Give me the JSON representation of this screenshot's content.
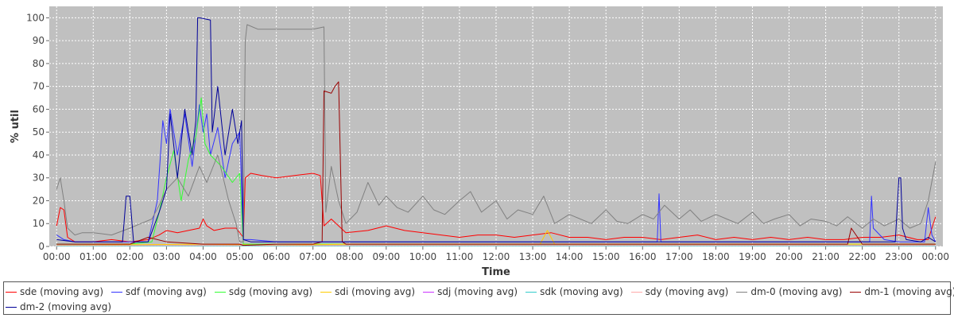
{
  "chart_data": {
    "type": "line",
    "title": "",
    "xlabel": "Time",
    "ylabel": "% util",
    "ylim": [
      0,
      105
    ],
    "yticks": [
      0,
      10,
      20,
      30,
      40,
      50,
      60,
      70,
      80,
      90,
      100
    ],
    "x_tick_labels": [
      "00:00",
      "01:00",
      "02:00",
      "03:00",
      "04:00",
      "05:00",
      "06:00",
      "07:00",
      "08:00",
      "09:00",
      "10:00",
      "11:00",
      "12:00",
      "13:00",
      "14:00",
      "15:00",
      "16:00",
      "17:00",
      "18:00",
      "19:00",
      "20:00",
      "21:00",
      "22:00",
      "23:00",
      "00:00"
    ],
    "x_range_hours": [
      -0.2,
      24.2
    ],
    "grid": true,
    "legend_position": "bottom",
    "series": [
      {
        "name": "sde (moving avg)",
        "color": "#ff0000",
        "x": [
          0.0,
          0.1,
          0.2,
          0.3,
          0.5,
          1.0,
          1.5,
          2.0,
          2.5,
          2.8,
          3.0,
          3.3,
          3.6,
          3.9,
          4.0,
          4.1,
          4.3,
          4.6,
          4.9,
          5.1,
          5.15,
          5.3,
          5.6,
          6.0,
          6.5,
          7.0,
          7.2,
          7.3,
          7.5,
          7.9,
          8.5,
          9.0,
          9.5,
          10.0,
          10.5,
          11.0,
          11.5,
          12.0,
          12.5,
          13.0,
          13.5,
          14.0,
          14.5,
          15.0,
          15.5,
          16.0,
          16.5,
          17.0,
          17.5,
          18.0,
          18.5,
          19.0,
          19.5,
          20.0,
          20.5,
          21.0,
          21.5,
          22.0,
          22.5,
          23.0,
          23.5,
          23.8,
          24.0
        ],
        "y": [
          9,
          17,
          16,
          4,
          2,
          2,
          3,
          2,
          3,
          5,
          7,
          6,
          7,
          8,
          12,
          9,
          7,
          8,
          8,
          4,
          30,
          32,
          31,
          30,
          31,
          32,
          31,
          9,
          12,
          6,
          7,
          9,
          7,
          6,
          5,
          4,
          5,
          5,
          4,
          5,
          6,
          4,
          4,
          3,
          4,
          4,
          3,
          4,
          5,
          3,
          4,
          3,
          4,
          3,
          4,
          3,
          3,
          4,
          4,
          5,
          3,
          3,
          13
        ]
      },
      {
        "name": "sdf (moving avg)",
        "color": "#3333ff",
        "x": [
          0.0,
          0.2,
          0.5,
          1.0,
          1.5,
          2.0,
          2.5,
          2.75,
          2.9,
          3.0,
          3.1,
          3.3,
          3.5,
          3.7,
          3.9,
          4.0,
          4.1,
          4.2,
          4.4,
          4.6,
          4.8,
          5.0,
          5.1,
          5.3,
          6.0,
          7.0,
          8.0,
          9.0,
          10.0,
          11.0,
          12.0,
          13.0,
          14.0,
          15.0,
          16.0,
          16.4,
          16.45,
          16.5,
          16.6,
          17.0,
          18.0,
          19.0,
          20.0,
          21.0,
          22.0,
          22.2,
          22.25,
          22.3,
          22.6,
          23.0,
          23.5,
          23.7,
          23.8,
          23.9,
          24.0
        ],
        "y": [
          5,
          3,
          2,
          2,
          2,
          2,
          2,
          20,
          55,
          45,
          60,
          40,
          58,
          35,
          62,
          50,
          58,
          40,
          52,
          30,
          45,
          50,
          3,
          3,
          2,
          2,
          2,
          2,
          2,
          2,
          2,
          2,
          2,
          2,
          2,
          2,
          23,
          2,
          2,
          2,
          2,
          2,
          2,
          2,
          2,
          2,
          22,
          8,
          3,
          2,
          2,
          2,
          17,
          5,
          2
        ]
      },
      {
        "name": "sdg (moving avg)",
        "color": "#33ff33",
        "x": [
          0.0,
          0.5,
          1.0,
          2.0,
          2.6,
          2.8,
          3.0,
          3.2,
          3.4,
          3.6,
          3.8,
          3.95,
          4.05,
          4.2,
          4.5,
          4.8,
          5.0,
          5.1,
          6.0,
          8.0,
          10.0,
          12.0,
          14.0,
          16.0,
          18.0,
          20.0,
          22.0,
          24.0
        ],
        "y": [
          1,
          1,
          1,
          1,
          2,
          15,
          30,
          42,
          20,
          38,
          48,
          65,
          45,
          40,
          35,
          28,
          32,
          1,
          1,
          1,
          1,
          1,
          1,
          1,
          1,
          1,
          1,
          1
        ]
      },
      {
        "name": "sdi (moving avg)",
        "color": "#ffcc00",
        "x": [
          0.0,
          4.0,
          6.0,
          8.0,
          10.0,
          12.0,
          13.2,
          13.4,
          13.6,
          16.0,
          20.0,
          24.0
        ],
        "y": [
          0.5,
          1,
          0.5,
          1,
          1,
          1,
          1,
          7,
          1,
          1,
          1,
          1
        ]
      },
      {
        "name": "sdj (moving avg)",
        "color": "#cc33ff",
        "x": [
          0.0,
          6.0,
          12.0,
          18.0,
          24.0
        ],
        "y": [
          0.3,
          0.3,
          0.3,
          0.3,
          0.3
        ]
      },
      {
        "name": "sdk (moving avg)",
        "color": "#33cccc",
        "x": [
          0.0,
          6.0,
          12.0,
          18.0,
          24.0
        ],
        "y": [
          0.2,
          0.2,
          0.2,
          0.2,
          0.2
        ]
      },
      {
        "name": "sdy (moving avg)",
        "color": "#ffaaaa",
        "x": [
          0.0,
          6.0,
          12.0,
          18.0,
          24.0
        ],
        "y": [
          0.4,
          0.4,
          0.4,
          0.4,
          0.4
        ]
      },
      {
        "name": "dm-0 (moving avg)",
        "color": "#808080",
        "x": [
          0.0,
          0.1,
          0.2,
          0.3,
          0.5,
          0.7,
          1.0,
          1.5,
          2.0,
          2.3,
          2.6,
          2.8,
          3.0,
          3.3,
          3.6,
          3.9,
          4.1,
          4.4,
          4.7,
          4.9,
          5.0,
          5.1,
          5.15,
          5.2,
          5.5,
          6.0,
          6.5,
          7.0,
          7.3,
          7.35,
          7.5,
          7.7,
          7.9,
          8.2,
          8.5,
          8.8,
          9.0,
          9.3,
          9.6,
          10.0,
          10.3,
          10.6,
          11.0,
          11.3,
          11.6,
          12.0,
          12.3,
          12.6,
          13.0,
          13.3,
          13.6,
          14.0,
          14.3,
          14.6,
          15.0,
          15.3,
          15.6,
          16.0,
          16.3,
          16.6,
          17.0,
          17.3,
          17.6,
          18.0,
          18.3,
          18.6,
          19.0,
          19.3,
          19.6,
          20.0,
          20.3,
          20.6,
          21.0,
          21.3,
          21.6,
          22.0,
          22.3,
          22.6,
          23.0,
          23.3,
          23.6,
          23.8,
          24.0
        ],
        "y": [
          25,
          30,
          20,
          8,
          5,
          6,
          6,
          5,
          8,
          10,
          12,
          18,
          25,
          30,
          22,
          35,
          28,
          40,
          20,
          10,
          2,
          2,
          90,
          97,
          95,
          95,
          95,
          95,
          96,
          15,
          35,
          20,
          10,
          15,
          28,
          18,
          22,
          17,
          15,
          22,
          16,
          14,
          20,
          24,
          15,
          20,
          12,
          16,
          14,
          22,
          10,
          14,
          12,
          10,
          16,
          11,
          10,
          14,
          12,
          18,
          12,
          16,
          11,
          14,
          12,
          10,
          15,
          10,
          12,
          14,
          9,
          12,
          11,
          9,
          13,
          8,
          12,
          9,
          12,
          8,
          10,
          20,
          37
        ]
      },
      {
        "name": "dm-1 (moving avg)",
        "color": "#990000",
        "x": [
          0.0,
          0.5,
          1.0,
          2.0,
          2.5,
          3.0,
          4.0,
          5.0,
          5.1,
          6.0,
          7.0,
          7.25,
          7.3,
          7.5,
          7.6,
          7.7,
          7.8,
          7.9,
          8.5,
          10.0,
          12.0,
          14.0,
          16.0,
          18.0,
          20.0,
          21.0,
          21.6,
          21.7,
          22.0,
          22.5,
          23.0,
          24.0
        ],
        "y": [
          1,
          1,
          1,
          1,
          4,
          2,
          1,
          1,
          0.5,
          1,
          1,
          2,
          68,
          67,
          70,
          72,
          2,
          1,
          1,
          1,
          1,
          1,
          1,
          1,
          1,
          1,
          1,
          8,
          1,
          1,
          1,
          1
        ]
      },
      {
        "name": "dm-2 (moving avg)",
        "color": "#000099",
        "x": [
          0.0,
          0.5,
          1.0,
          1.8,
          1.9,
          2.0,
          2.1,
          2.5,
          2.8,
          3.0,
          3.1,
          3.3,
          3.5,
          3.7,
          3.8,
          3.85,
          3.9,
          4.2,
          4.25,
          4.4,
          4.6,
          4.8,
          4.95,
          5.05,
          5.1,
          5.3,
          6.0,
          7.0,
          8.0,
          9.0,
          10.0,
          11.0,
          12.0,
          13.0,
          14.0,
          15.0,
          16.0,
          17.0,
          18.0,
          19.0,
          20.0,
          21.0,
          22.0,
          22.9,
          23.0,
          23.05,
          23.1,
          23.2,
          23.6,
          23.8,
          24.0
        ],
        "y": [
          3,
          2,
          2,
          2,
          22,
          22,
          2,
          2,
          15,
          25,
          58,
          30,
          60,
          40,
          55,
          100,
          100,
          99,
          50,
          70,
          40,
          60,
          45,
          55,
          3,
          2,
          2,
          2,
          2,
          2,
          2,
          2,
          2,
          2,
          2,
          2,
          2,
          2,
          2,
          2,
          2,
          2,
          2,
          2,
          30,
          30,
          8,
          3,
          2,
          4,
          2
        ]
      }
    ]
  }
}
